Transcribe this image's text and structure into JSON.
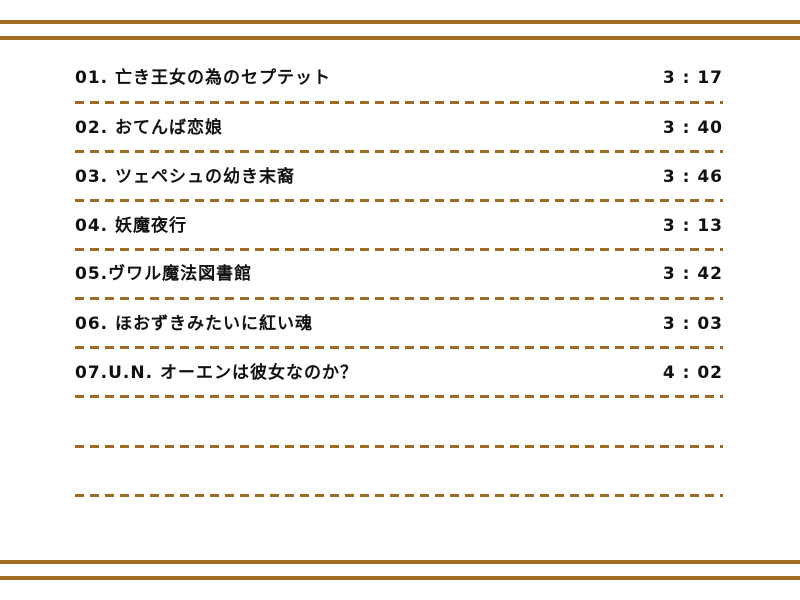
{
  "accent_color": "#a06a22",
  "tracks": [
    {
      "title": "01. 亡き王女の為のセプテット",
      "duration": "3 : 17"
    },
    {
      "title": "02. おてんば恋娘",
      "duration": "3 : 40"
    },
    {
      "title": "03. ツェペシュの幼き末裔",
      "duration": "3 : 46"
    },
    {
      "title": "04. 妖魔夜行",
      "duration": "3 : 13"
    },
    {
      "title": "05.ヴワル魔法図書館",
      "duration": "3 : 42"
    },
    {
      "title": "06. ほおずきみたいに紅い魂",
      "duration": "3 : 03"
    },
    {
      "title": "07.U.N. オーエンは彼女なのか？",
      "duration": "4 : 02"
    }
  ]
}
